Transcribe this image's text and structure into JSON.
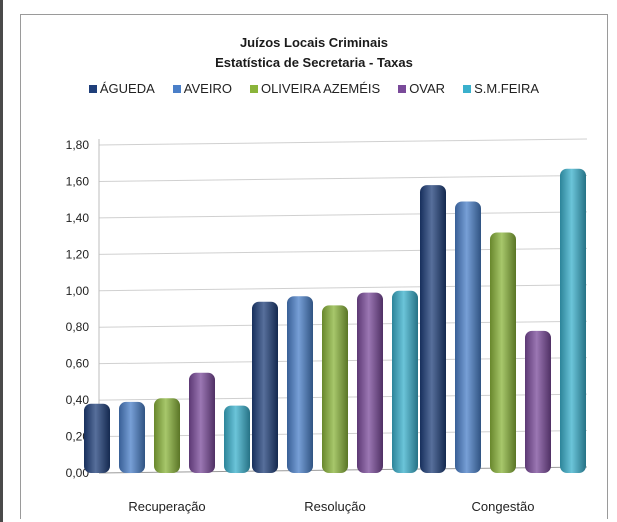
{
  "chart_data": {
    "type": "bar",
    "title": "Juízos Locais Criminais",
    "subtitle": "Estatística de Secretaria - Taxas",
    "categories": [
      "Recuperação",
      "Resolução",
      "Congestão"
    ],
    "series": [
      {
        "name": "ÁGUEDA",
        "color": "#1f3f7a",
        "values": [
          0.38,
          0.94,
          1.58
        ]
      },
      {
        "name": "AVEIRO",
        "color": "#4a7fc8",
        "values": [
          0.39,
          0.97,
          1.49
        ]
      },
      {
        "name": "OLIVEIRA AZEMÉIS",
        "color": "#8ab43a",
        "values": [
          0.41,
          0.92,
          1.32
        ]
      },
      {
        "name": "OVAR",
        "color": "#7a4a9a",
        "values": [
          0.55,
          0.99,
          0.78
        ]
      },
      {
        "name": "S.M.FEIRA",
        "color": "#3ab0cc",
        "values": [
          0.37,
          1.0,
          1.67
        ]
      }
    ],
    "yticks": [
      "0,00",
      "0,20",
      "0,40",
      "0,60",
      "0,80",
      "1,00",
      "1,20",
      "1,40",
      "1,60",
      "1,80"
    ],
    "ylim": [
      0,
      1.8
    ],
    "grid": true,
    "legend_position": "top"
  }
}
